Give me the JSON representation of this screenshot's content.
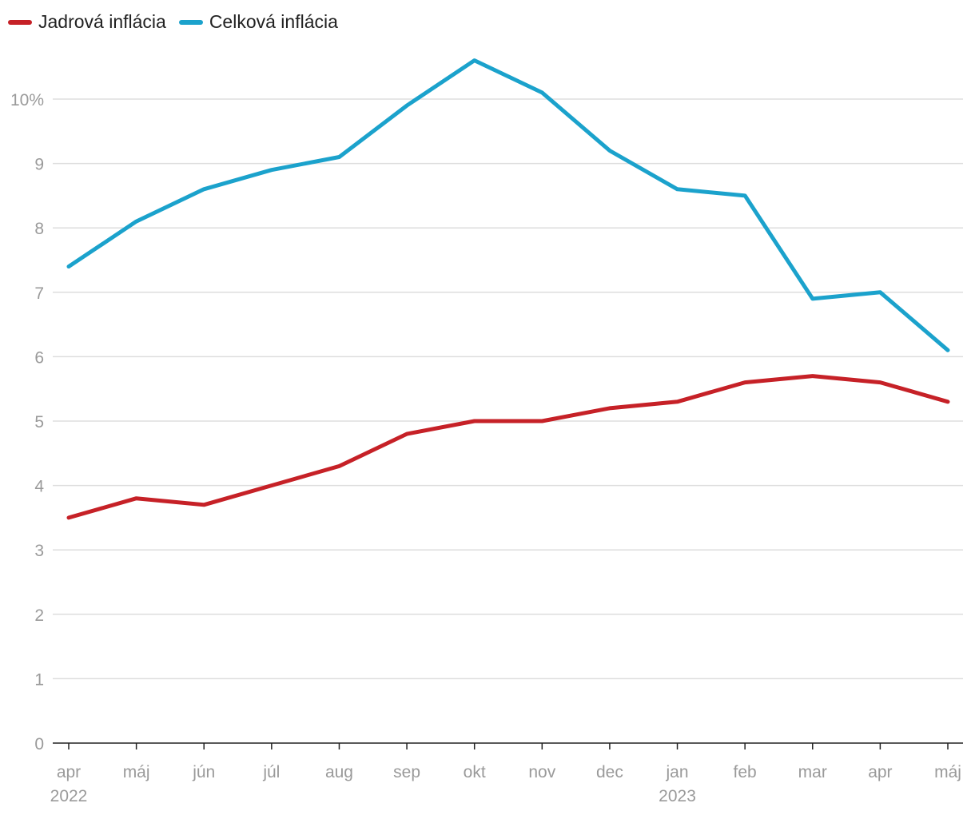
{
  "chart_data": {
    "type": "line",
    "title": "",
    "xlabel": "",
    "ylabel": "",
    "categories": [
      "apr",
      "máj",
      "jún",
      "júl",
      "aug",
      "sep",
      "okt",
      "nov",
      "dec",
      "jan",
      "feb",
      "mar",
      "apr",
      "máj"
    ],
    "year_labels": [
      {
        "category_index": 0,
        "label": "2022"
      },
      {
        "category_index": 9,
        "label": "2023"
      }
    ],
    "ylim": [
      0,
      10
    ],
    "y_ticks": [
      {
        "value": 0,
        "label": "0"
      },
      {
        "value": 1,
        "label": "1"
      },
      {
        "value": 2,
        "label": "2"
      },
      {
        "value": 3,
        "label": "3"
      },
      {
        "value": 4,
        "label": "4"
      },
      {
        "value": 5,
        "label": "5"
      },
      {
        "value": 6,
        "label": "6"
      },
      {
        "value": 7,
        "label": "7"
      },
      {
        "value": 8,
        "label": "8"
      },
      {
        "value": 9,
        "label": "9"
      },
      {
        "value": 10,
        "label": "10%"
      }
    ],
    "grid": true,
    "legend_position": "top-left",
    "series": [
      {
        "name": "Jadrová inflácia",
        "color": "#c62127",
        "values": [
          3.5,
          3.8,
          3.7,
          4.0,
          4.3,
          4.8,
          5.0,
          5.0,
          5.2,
          5.3,
          5.6,
          5.7,
          5.6,
          5.3
        ]
      },
      {
        "name": "Celková inflácia",
        "color": "#1ba2cc",
        "values": [
          7.4,
          8.1,
          8.6,
          8.9,
          9.1,
          9.9,
          10.6,
          10.1,
          9.2,
          8.6,
          8.5,
          6.9,
          7.0,
          6.1
        ]
      }
    ]
  }
}
